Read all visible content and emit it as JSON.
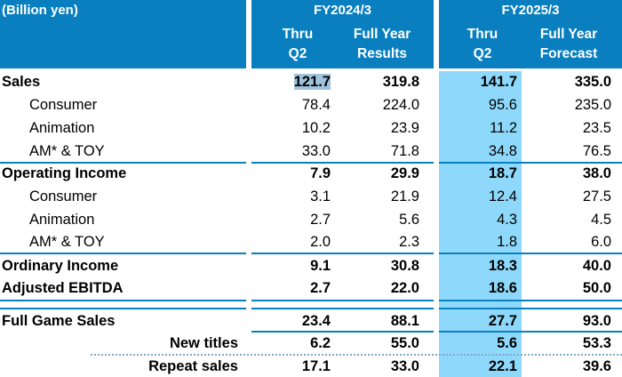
{
  "header": {
    "unit": "(Billion yen)",
    "fy2024": "FY2024/3",
    "fy2025": "FY2025/3",
    "cols": [
      "Thru\nQ2",
      "Full Year\nResults",
      "Thru\nQ2",
      "Full Year\nForecast"
    ],
    "col_lines": [
      [
        "Thru",
        "Q2"
      ],
      [
        "Full Year",
        "Results"
      ],
      [
        "Thru",
        "Q2"
      ],
      [
        "Full Year",
        "Forecast"
      ]
    ]
  },
  "highlight_color": "#8ed9fb",
  "header_color": "#0a7fbf",
  "rows": [
    {
      "label": "Sales",
      "bold": true,
      "values": [
        "121.7",
        "319.8",
        "141.7",
        "335.0"
      ]
    },
    {
      "label": "Consumer",
      "values": [
        "78.4",
        "224.0",
        "95.6",
        "235.0"
      ]
    },
    {
      "label": "Animation",
      "values": [
        "10.2",
        "23.9",
        "11.2",
        "23.5"
      ]
    },
    {
      "label": "AM* & TOY",
      "values": [
        "33.0",
        "71.8",
        "34.8",
        "76.5"
      ]
    },
    {
      "label": "Operating Income",
      "bold": true,
      "values": [
        "7.9",
        "29.9",
        "18.7",
        "38.0"
      ]
    },
    {
      "label": "Consumer",
      "values": [
        "3.1",
        "21.9",
        "12.4",
        "27.5"
      ]
    },
    {
      "label": "Animation",
      "values": [
        "2.7",
        "5.6",
        "4.3",
        "4.5"
      ]
    },
    {
      "label": "AM* & TOY",
      "values": [
        "2.0",
        "2.3",
        "1.8",
        "6.0"
      ]
    },
    {
      "label": "Ordinary Income",
      "bold": true,
      "values": [
        "9.1",
        "30.8",
        "18.3",
        "40.0"
      ]
    },
    {
      "label": "Adjusted EBITDA",
      "bold": true,
      "values": [
        "2.7",
        "22.0",
        "18.6",
        "50.0"
      ]
    },
    {
      "label": "Full Game Sales",
      "bold": true,
      "values": [
        "23.4",
        "88.1",
        "27.7",
        "93.0"
      ]
    },
    {
      "label": "New titles",
      "bold": true,
      "right": true,
      "values": [
        "6.2",
        "55.0",
        "5.6",
        "53.3"
      ]
    },
    {
      "label": "Repeat sales",
      "bold": true,
      "right": true,
      "values": [
        "17.1",
        "33.0",
        "22.1",
        "39.6"
      ]
    }
  ]
}
